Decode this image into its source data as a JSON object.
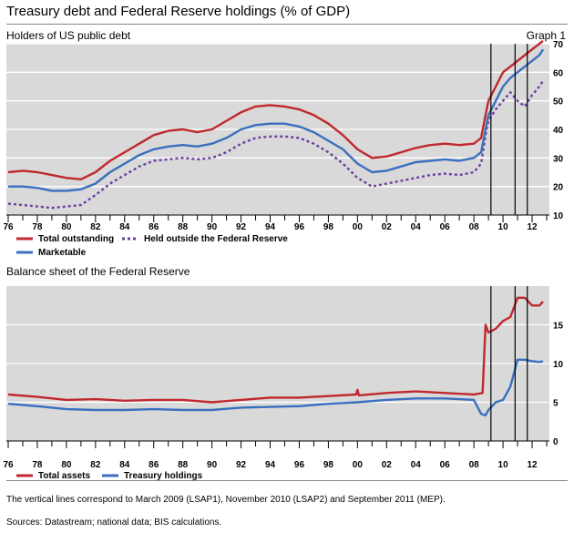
{
  "title": "Treasury debt and Federal Reserve holdings (% of GDP)",
  "graph_label": "Graph 1",
  "footnote": "The vertical lines correspond to March 2009 (LSAP1), November 2010 (LSAP2) and September 2011 (MEP).",
  "sources": "Sources: Datastream; national data; BIS calculations.",
  "colors": {
    "red": "#c0282d",
    "blue": "#3a6fbf",
    "purple": "#6b3fa0",
    "panel_bg": "#d9d9d9"
  },
  "chart_data": [
    {
      "type": "line",
      "title": "Holders of US public debt",
      "x_tick_labels": [
        "76",
        "78",
        "80",
        "82",
        "84",
        "86",
        "88",
        "90",
        "92",
        "94",
        "96",
        "98",
        "00",
        "02",
        "04",
        "06",
        "08",
        "10",
        "12"
      ],
      "xlim": [
        1976,
        2013
      ],
      "ylim": [
        10,
        70
      ],
      "y_ticks": [
        10,
        20,
        30,
        40,
        50,
        60,
        70
      ],
      "y_axis_side": "right",
      "vertical_lines": [
        2009.17,
        2010.83,
        2011.67
      ],
      "series": [
        {
          "name": "Total outstanding",
          "color": "red",
          "style": "solid",
          "x": [
            1976,
            1977,
            1978,
            1979,
            1980,
            1981,
            1982,
            1983,
            1984,
            1985,
            1986,
            1987,
            1988,
            1989,
            1990,
            1991,
            1992,
            1993,
            1994,
            1995,
            1996,
            1997,
            1998,
            1999,
            2000,
            2001,
            2002,
            2003,
            2004,
            2005,
            2006,
            2007,
            2008,
            2008.5,
            2008.8,
            2009,
            2009.5,
            2010,
            2010.5,
            2011,
            2011.5,
            2012,
            2012.5,
            2012.75
          ],
          "y": [
            25,
            25.5,
            25,
            24,
            23,
            22.5,
            25,
            29,
            32,
            35,
            38,
            39.5,
            40,
            39,
            40,
            43,
            46,
            48,
            48.5,
            48,
            47,
            45,
            42,
            38,
            33,
            30,
            30.5,
            32,
            33.5,
            34.5,
            35,
            34.5,
            35,
            37,
            45,
            50,
            55,
            60,
            62,
            64,
            66,
            68,
            70,
            71
          ]
        },
        {
          "name": "Held outside the Federal Reserve",
          "color": "purple",
          "style": "dashed",
          "x": [
            1976,
            1977,
            1978,
            1979,
            1980,
            1981,
            1982,
            1983,
            1984,
            1985,
            1986,
            1987,
            1988,
            1989,
            1990,
            1991,
            1992,
            1993,
            1994,
            1995,
            1996,
            1997,
            1998,
            1999,
            2000,
            2001,
            2002,
            2003,
            2004,
            2005,
            2006,
            2007,
            2008,
            2008.5,
            2008.8,
            2009,
            2009.5,
            2010,
            2010.5,
            2011,
            2011.5,
            2012,
            2012.5,
            2012.75
          ],
          "y": [
            14,
            13.5,
            13,
            12.5,
            13,
            13.5,
            17,
            21,
            24,
            27,
            29,
            29.5,
            30,
            29.5,
            30,
            32,
            35,
            37,
            37.5,
            37.5,
            37,
            35,
            32,
            28,
            23,
            20,
            21,
            22,
            23,
            24,
            24.5,
            24,
            25,
            28,
            38,
            43,
            47,
            50,
            53,
            50,
            48,
            52,
            55,
            57
          ]
        },
        {
          "name": "Marketable",
          "color": "blue",
          "style": "solid",
          "x": [
            1976,
            1977,
            1978,
            1979,
            1980,
            1981,
            1982,
            1983,
            1984,
            1985,
            1986,
            1987,
            1988,
            1989,
            1990,
            1991,
            1992,
            1993,
            1994,
            1995,
            1996,
            1997,
            1998,
            1999,
            2000,
            2001,
            2002,
            2003,
            2004,
            2005,
            2006,
            2007,
            2008,
            2008.5,
            2008.8,
            2009,
            2009.5,
            2010,
            2010.5,
            2011,
            2011.5,
            2012,
            2012.5,
            2012.75
          ],
          "y": [
            20,
            20,
            19.5,
            18.5,
            18.5,
            19,
            21,
            25,
            28,
            31,
            33,
            34,
            34.5,
            34,
            35,
            37,
            40,
            41.5,
            42,
            42,
            41,
            39,
            36,
            33,
            28,
            25,
            25.5,
            27,
            28.5,
            29,
            29.5,
            29,
            30,
            32,
            40,
            45,
            50,
            55,
            58,
            60,
            62,
            64,
            66,
            68
          ]
        }
      ],
      "legend": [
        "Total outstanding",
        "Held outside the Federal Reserve",
        "Marketable"
      ]
    },
    {
      "type": "line",
      "title": "Balance sheet of the Federal Reserve",
      "x_tick_labels": [
        "76",
        "78",
        "80",
        "82",
        "84",
        "86",
        "88",
        "90",
        "92",
        "94",
        "96",
        "98",
        "00",
        "02",
        "04",
        "06",
        "08",
        "10",
        "12"
      ],
      "xlim": [
        1976,
        2013
      ],
      "ylim": [
        0,
        20
      ],
      "y_ticks": [
        0,
        5,
        10,
        15
      ],
      "y_axis_side": "right",
      "vertical_lines": [
        2009.17,
        2010.83,
        2011.67
      ],
      "series": [
        {
          "name": "Total assets",
          "color": "red",
          "style": "solid",
          "x": [
            1976,
            1978,
            1980,
            1982,
            1984,
            1986,
            1988,
            1990,
            1992,
            1994,
            1996,
            1998,
            1999.9,
            2000,
            2000.1,
            2002,
            2004,
            2006,
            2008,
            2008.6,
            2008.8,
            2009,
            2009.5,
            2010,
            2010.5,
            2011,
            2011.5,
            2012,
            2012.5,
            2012.75
          ],
          "y": [
            6,
            5.7,
            5.3,
            5.4,
            5.2,
            5.3,
            5.3,
            5,
            5.3,
            5.6,
            5.6,
            5.8,
            6,
            6.6,
            5.9,
            6.2,
            6.4,
            6.2,
            6,
            6.2,
            15,
            14,
            14.5,
            15.5,
            16,
            18.5,
            18.5,
            17.5,
            17.5,
            18
          ]
        },
        {
          "name": "Treasury holdings",
          "color": "blue",
          "style": "solid",
          "x": [
            1976,
            1978,
            1980,
            1982,
            1984,
            1986,
            1988,
            1990,
            1992,
            1994,
            1996,
            1998,
            2000,
            2002,
            2004,
            2006,
            2008,
            2008.5,
            2008.8,
            2009,
            2009.5,
            2010,
            2010.5,
            2011,
            2011.5,
            2012,
            2012.5,
            2012.75
          ],
          "y": [
            4.8,
            4.5,
            4.1,
            4,
            4,
            4.1,
            4,
            4,
            4.3,
            4.4,
            4.5,
            4.8,
            5,
            5.3,
            5.5,
            5.5,
            5.3,
            3.5,
            3.3,
            4,
            5,
            5.3,
            7,
            10.5,
            10.5,
            10.3,
            10.2,
            10.3
          ]
        }
      ],
      "legend": [
        "Total assets",
        "Treasury holdings"
      ]
    }
  ]
}
